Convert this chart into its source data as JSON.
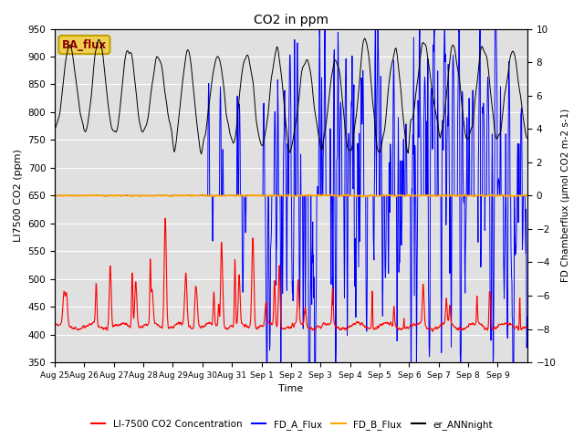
{
  "title": "CO2 in ppm",
  "ylabel_left": "LI7500 CO2 (ppm)",
  "ylabel_right": "FD Chamberflux (μmol CO2 m-2 s-1)",
  "xlabel": "Time",
  "ylim_left": [
    350,
    950
  ],
  "ylim_right": [
    -10,
    10
  ],
  "xtick_labels": [
    "Aug 25",
    "Aug 26",
    "Aug 27",
    "Aug 28",
    "Aug 29",
    "Aug 30",
    "Aug 31",
    "Sep 1",
    "Sep 2",
    "Sep 3",
    "Sep 4",
    "Sep 5",
    "Sep 6",
    "Sep 7",
    "Sep 8",
    "Sep 9"
  ],
  "background_color": "#e0e0e0",
  "textbox_label": "BA_flux",
  "textbox_facecolor": "#f0d050",
  "textbox_edgecolor": "#c0a000"
}
